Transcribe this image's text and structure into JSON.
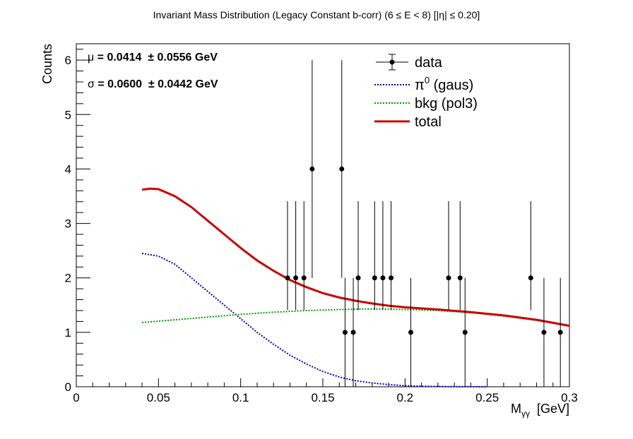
{
  "chart_data": {
    "type": "scatter",
    "title": "Invariant Mass Distribution (Legacy Constant b-corr)   (6 ≤ E < 8)   [|η| ≤ 0.20]",
    "xlabel": "M",
    "xlabel_sub": "γγ",
    "xlabel_unit": "  [GeV]",
    "ylabel": "Counts",
    "xlim": [
      0,
      0.3
    ],
    "ylim": [
      0,
      6.3
    ],
    "x_ticks": [
      0,
      0.05,
      0.1,
      0.15,
      0.2,
      0.25,
      0.3
    ],
    "x_tick_labels": [
      "0",
      "0.05",
      "0.1",
      "0.15",
      "0.2",
      "0.25",
      "0.3"
    ],
    "y_ticks": [
      0,
      1,
      2,
      3,
      4,
      5,
      6
    ],
    "y_tick_labels": [
      "0",
      "1",
      "2",
      "3",
      "4",
      "5",
      "6"
    ],
    "grid": false,
    "legend_position": "top-right",
    "stats": {
      "mu_symbol": "μ",
      "mu_text": " = 0.0414  ± 0.0556 GeV",
      "sigma_symbol": "σ",
      "sigma_text": " = 0.0600  ± 0.0442 GeV"
    },
    "data": {
      "name": "data",
      "color": "#000000",
      "points": [
        {
          "x": 0.1285,
          "y": 2,
          "lo": 1.41,
          "hi": 3.41
        },
        {
          "x": 0.1335,
          "y": 2,
          "lo": 1.41,
          "hi": 3.41
        },
        {
          "x": 0.1385,
          "y": 2,
          "lo": 1.41,
          "hi": 3.41
        },
        {
          "x": 0.1435,
          "y": 4,
          "lo": 2.0,
          "hi": 6.0
        },
        {
          "x": 0.1615,
          "y": 4,
          "lo": 2.0,
          "hi": 6.0
        },
        {
          "x": 0.1635,
          "y": 1,
          "lo": 0.0,
          "hi": 2.0
        },
        {
          "x": 0.1685,
          "y": 1,
          "lo": 0.0,
          "hi": 2.0
        },
        {
          "x": 0.1715,
          "y": 2,
          "lo": 1.41,
          "hi": 3.41
        },
        {
          "x": 0.1815,
          "y": 2,
          "lo": 1.41,
          "hi": 3.41
        },
        {
          "x": 0.1865,
          "y": 2,
          "lo": 1.41,
          "hi": 3.41
        },
        {
          "x": 0.1915,
          "y": 2,
          "lo": 1.41,
          "hi": 3.41
        },
        {
          "x": 0.2035,
          "y": 1,
          "lo": 0.0,
          "hi": 2.0
        },
        {
          "x": 0.2265,
          "y": 2,
          "lo": 1.41,
          "hi": 3.41
        },
        {
          "x": 0.2335,
          "y": 2,
          "lo": 1.41,
          "hi": 3.41
        },
        {
          "x": 0.2365,
          "y": 1,
          "lo": 0.0,
          "hi": 2.0
        },
        {
          "x": 0.2765,
          "y": 2,
          "lo": 1.41,
          "hi": 3.41
        },
        {
          "x": 0.2845,
          "y": 1,
          "lo": 0.0,
          "hi": 2.0
        },
        {
          "x": 0.2945,
          "y": 1,
          "lo": 0.0,
          "hi": 2.0
        }
      ]
    },
    "curves": [
      {
        "name": "π",
        "name_sup": "0",
        "name_suffix": " (gaus)",
        "color": "#0000cc",
        "style": "dotted",
        "x": [
          0.04,
          0.05,
          0.06,
          0.07,
          0.08,
          0.09,
          0.1,
          0.11,
          0.12,
          0.13,
          0.14,
          0.15,
          0.16,
          0.17,
          0.18,
          0.19,
          0.2,
          0.21,
          0.22,
          0.23,
          0.24,
          0.25
        ],
        "y": [
          2.45,
          2.4,
          2.25,
          2.0,
          1.75,
          1.5,
          1.25,
          1.0,
          0.78,
          0.58,
          0.42,
          0.28,
          0.18,
          0.11,
          0.07,
          0.04,
          0.02,
          0.01,
          0.005,
          0.002,
          0.001,
          0.0
        ]
      },
      {
        "name": "bkg (pol3)",
        "color": "#009900",
        "style": "dotted",
        "x": [
          0.04,
          0.06,
          0.08,
          0.1,
          0.12,
          0.14,
          0.16,
          0.18,
          0.2,
          0.22,
          0.24,
          0.26,
          0.28,
          0.3
        ],
        "y": [
          1.18,
          1.23,
          1.28,
          1.33,
          1.37,
          1.4,
          1.42,
          1.43,
          1.42,
          1.4,
          1.36,
          1.3,
          1.22,
          1.12
        ]
      },
      {
        "name": "total",
        "color": "#cc0000",
        "style": "solid",
        "x": [
          0.04,
          0.045,
          0.05,
          0.06,
          0.07,
          0.08,
          0.09,
          0.1,
          0.11,
          0.12,
          0.13,
          0.14,
          0.15,
          0.16,
          0.17,
          0.18,
          0.19,
          0.2,
          0.22,
          0.24,
          0.26,
          0.28,
          0.3
        ],
        "y": [
          3.62,
          3.64,
          3.63,
          3.5,
          3.3,
          3.05,
          2.8,
          2.55,
          2.32,
          2.13,
          1.96,
          1.83,
          1.72,
          1.64,
          1.58,
          1.53,
          1.49,
          1.46,
          1.42,
          1.37,
          1.31,
          1.23,
          1.12
        ]
      }
    ]
  }
}
